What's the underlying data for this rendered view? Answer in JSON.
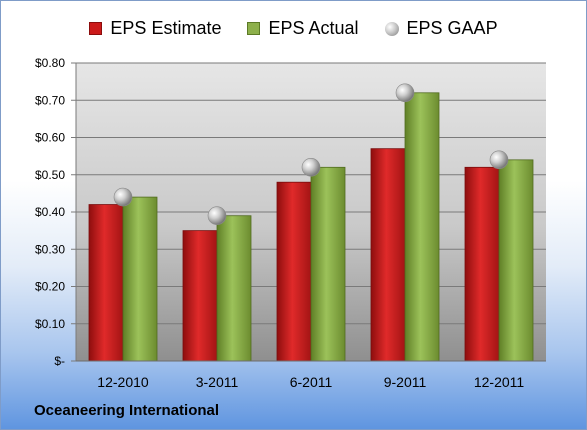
{
  "company": "Oceaneering International",
  "chart_data": {
    "type": "bar",
    "categories": [
      "12-2010",
      "3-2011",
      "6-2011",
      "9-2011",
      "12-2011"
    ],
    "series": [
      {
        "name": "EPS Estimate",
        "kind": "bar",
        "color": "#cc1a1a",
        "values": [
          0.42,
          0.35,
          0.48,
          0.57,
          0.52
        ]
      },
      {
        "name": "EPS Actual",
        "kind": "bar",
        "color": "#8db04b",
        "values": [
          0.44,
          0.39,
          0.52,
          0.72,
          0.54
        ]
      },
      {
        "name": "EPS GAAP",
        "kind": "marker",
        "color": "#b5b5b5",
        "values": [
          0.44,
          0.39,
          0.52,
          0.72,
          0.54
        ]
      }
    ],
    "yticks": [
      "$-",
      "$0.10",
      "$0.20",
      "$0.30",
      "$0.40",
      "$0.50",
      "$0.60",
      "$0.70",
      "$0.80"
    ],
    "ylim": [
      0,
      0.8
    ],
    "grid": true,
    "legend_position": "top"
  }
}
